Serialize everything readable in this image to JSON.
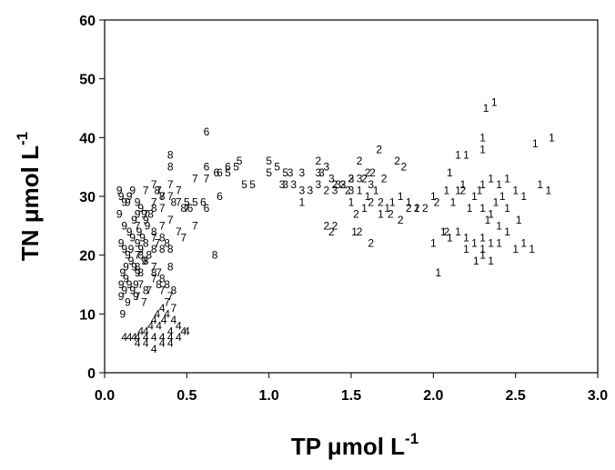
{
  "chart_data": {
    "type": "scatter",
    "title": "",
    "xlabel": "TP μmol L",
    "xlabel_sup": "-1",
    "ylabel": "TN μmol L",
    "ylabel_sup": "-1",
    "xlim": [
      0.0,
      3.0
    ],
    "ylim": [
      0,
      60
    ],
    "x_ticks": [
      "0.0",
      "0.5",
      "1.0",
      "1.5",
      "2.0",
      "2.5",
      "3.0"
    ],
    "y_ticks": [
      "0",
      "10",
      "20",
      "30",
      "40",
      "50",
      "60"
    ],
    "grid": false,
    "legend": "none",
    "marker": "series label characters",
    "series": [
      {
        "name": "1",
        "points": [
          [
            2.32,
            45
          ],
          [
            2.37,
            46
          ],
          [
            2.62,
            39
          ],
          [
            2.72,
            40
          ],
          [
            2.3,
            40
          ],
          [
            2.15,
            37
          ],
          [
            2.2,
            37
          ],
          [
            2.3,
            38
          ],
          [
            2.1,
            34
          ],
          [
            2.15,
            31
          ],
          [
            2.25,
            30
          ],
          [
            2.3,
            32
          ],
          [
            2.35,
            33
          ],
          [
            2.4,
            32
          ],
          [
            2.45,
            33
          ],
          [
            2.5,
            31
          ],
          [
            2.55,
            30
          ],
          [
            2.65,
            32
          ],
          [
            2.7,
            31
          ],
          [
            2.22,
            28
          ],
          [
            2.3,
            28
          ],
          [
            2.38,
            29
          ],
          [
            2.45,
            28
          ],
          [
            2.33,
            26
          ],
          [
            2.4,
            25
          ],
          [
            2.06,
            24
          ],
          [
            2.1,
            23
          ],
          [
            2.15,
            24
          ],
          [
            2.2,
            23
          ],
          [
            2.25,
            22
          ],
          [
            2.3,
            23
          ],
          [
            2.35,
            22
          ],
          [
            2.4,
            22
          ],
          [
            2.5,
            21
          ],
          [
            2.3,
            21
          ],
          [
            2.55,
            22
          ],
          [
            2.6,
            21
          ],
          [
            2.26,
            19
          ],
          [
            2.3,
            20
          ],
          [
            2.35,
            19
          ],
          [
            2.03,
            17
          ],
          [
            2.0,
            22
          ],
          [
            1.85,
            29
          ],
          [
            1.9,
            28
          ],
          [
            1.8,
            30
          ],
          [
            1.75,
            29
          ],
          [
            1.65,
            31
          ],
          [
            1.72,
            28
          ],
          [
            1.68,
            27
          ],
          [
            1.6,
            30
          ],
          [
            1.55,
            31
          ],
          [
            1.5,
            29
          ],
          [
            1.58,
            28
          ],
          [
            1.52,
            24
          ],
          [
            1.2,
            29
          ],
          [
            2.0,
            30
          ],
          [
            2.08,
            31
          ],
          [
            2.18,
            32
          ],
          [
            2.12,
            29
          ],
          [
            2.28,
            31
          ],
          [
            2.42,
            30
          ],
          [
            2.35,
            27
          ],
          [
            2.2,
            21
          ],
          [
            2.45,
            24
          ],
          [
            2.52,
            26
          ]
        ]
      },
      {
        "name": "2",
        "points": [
          [
            1.3,
            36
          ],
          [
            1.55,
            36
          ],
          [
            1.67,
            38
          ],
          [
            1.78,
            36
          ],
          [
            1.82,
            35
          ],
          [
            1.6,
            34
          ],
          [
            1.63,
            34
          ],
          [
            1.7,
            33
          ],
          [
            1.5,
            33
          ],
          [
            1.45,
            32
          ],
          [
            1.4,
            32
          ],
          [
            1.35,
            31
          ],
          [
            1.53,
            27
          ],
          [
            1.62,
            29
          ],
          [
            1.68,
            29
          ],
          [
            1.74,
            27
          ],
          [
            1.8,
            26
          ],
          [
            1.85,
            28
          ],
          [
            1.9,
            28
          ],
          [
            1.95,
            28
          ],
          [
            1.35,
            25
          ],
          [
            1.4,
            25
          ],
          [
            1.38,
            24
          ],
          [
            1.55,
            24
          ],
          [
            1.62,
            22
          ],
          [
            2.18,
            31
          ],
          [
            2.02,
            29
          ],
          [
            2.08,
            24
          ],
          [
            1.58,
            33
          ],
          [
            1.48,
            31
          ]
        ]
      },
      {
        "name": "3",
        "points": [
          [
            1.13,
            34
          ],
          [
            1.2,
            34
          ],
          [
            1.3,
            34
          ],
          [
            1.35,
            35
          ],
          [
            1.32,
            34
          ],
          [
            1.15,
            32
          ],
          [
            1.2,
            31
          ],
          [
            1.25,
            31
          ],
          [
            1.08,
            32
          ],
          [
            1.1,
            32
          ],
          [
            1.3,
            32
          ],
          [
            1.38,
            33
          ],
          [
            1.42,
            32
          ],
          [
            1.45,
            32
          ],
          [
            1.5,
            33
          ],
          [
            1.55,
            33
          ],
          [
            1.62,
            32
          ],
          [
            1.4,
            31
          ],
          [
            1.5,
            31
          ]
        ]
      },
      {
        "name": "4",
        "points": [
          [
            0.15,
            6
          ],
          [
            0.2,
            6
          ],
          [
            0.25,
            6
          ],
          [
            0.3,
            6
          ],
          [
            0.35,
            6
          ],
          [
            0.4,
            6
          ],
          [
            0.45,
            6
          ],
          [
            0.2,
            5
          ],
          [
            0.25,
            5
          ],
          [
            0.3,
            4
          ],
          [
            0.35,
            5
          ],
          [
            0.4,
            5
          ],
          [
            0.25,
            7
          ],
          [
            0.28,
            8
          ],
          [
            0.3,
            9
          ],
          [
            0.32,
            10
          ],
          [
            0.35,
            11
          ],
          [
            0.38,
            10
          ],
          [
            0.42,
            9
          ],
          [
            0.45,
            8
          ],
          [
            0.48,
            7
          ],
          [
            0.5,
            7
          ],
          [
            0.22,
            7
          ],
          [
            0.18,
            6
          ],
          [
            0.12,
            6
          ],
          [
            0.33,
            8
          ],
          [
            0.36,
            9
          ],
          [
            0.4,
            7
          ]
        ]
      },
      {
        "name": "5",
        "points": [
          [
            0.8,
            35
          ],
          [
            0.82,
            36
          ],
          [
            0.75,
            34
          ],
          [
            0.85,
            32
          ],
          [
            0.9,
            32
          ],
          [
            1.0,
            36
          ],
          [
            1.05,
            35
          ],
          [
            1.1,
            34
          ],
          [
            1.0,
            34
          ],
          [
            0.5,
            29
          ],
          [
            0.55,
            29
          ]
        ]
      },
      {
        "name": "6",
        "points": [
          [
            0.62,
            41
          ],
          [
            0.62,
            35
          ],
          [
            0.68,
            34
          ],
          [
            0.7,
            34
          ],
          [
            0.75,
            35
          ],
          [
            0.6,
            29
          ],
          [
            0.52,
            28
          ],
          [
            0.7,
            30
          ],
          [
            0.62,
            28
          ]
        ]
      },
      {
        "name": "7",
        "points": [
          [
            0.3,
            32
          ],
          [
            0.33,
            31
          ],
          [
            0.4,
            32
          ],
          [
            0.45,
            31
          ],
          [
            0.55,
            33
          ],
          [
            0.62,
            33
          ],
          [
            0.35,
            30
          ],
          [
            0.4,
            30
          ],
          [
            0.45,
            29
          ],
          [
            0.5,
            28
          ],
          [
            0.25,
            31
          ],
          [
            0.3,
            29
          ],
          [
            0.35,
            28
          ],
          [
            0.4,
            26
          ],
          [
            0.45,
            24
          ],
          [
            0.48,
            23
          ],
          [
            0.55,
            25
          ],
          [
            0.2,
            25
          ],
          [
            0.25,
            27
          ],
          [
            0.3,
            23
          ],
          [
            0.32,
            22
          ],
          [
            0.35,
            25
          ],
          [
            0.2,
            20
          ],
          [
            0.3,
            18
          ],
          [
            0.33,
            17
          ],
          [
            0.22,
            15
          ],
          [
            0.27,
            14
          ],
          [
            0.3,
            16
          ],
          [
            0.35,
            14
          ],
          [
            0.38,
            12
          ],
          [
            0.4,
            13
          ],
          [
            0.42,
            11
          ],
          [
            0.2,
            13
          ],
          [
            0.24,
            12
          ]
        ]
      },
      {
        "name": "8",
        "points": [
          [
            0.4,
            37
          ],
          [
            0.4,
            35
          ],
          [
            0.32,
            31
          ],
          [
            0.35,
            30
          ],
          [
            0.42,
            29
          ],
          [
            0.3,
            28
          ],
          [
            0.28,
            27
          ],
          [
            0.3,
            24
          ],
          [
            0.35,
            23
          ],
          [
            0.38,
            22
          ],
          [
            0.4,
            21
          ],
          [
            0.25,
            22
          ],
          [
            0.22,
            20
          ],
          [
            0.27,
            20
          ],
          [
            0.3,
            21
          ],
          [
            0.35,
            21
          ],
          [
            0.4,
            18
          ],
          [
            0.25,
            19
          ],
          [
            0.2,
            18
          ],
          [
            0.22,
            17
          ],
          [
            0.3,
            17
          ],
          [
            0.35,
            16
          ],
          [
            0.33,
            15
          ],
          [
            0.38,
            15
          ],
          [
            0.42,
            14
          ],
          [
            0.25,
            14
          ],
          [
            0.67,
            20
          ],
          [
            0.48,
            28
          ]
        ]
      },
      {
        "name": "9",
        "points": [
          [
            0.09,
            31
          ],
          [
            0.1,
            30
          ],
          [
            0.14,
            29
          ],
          [
            0.15,
            30
          ],
          [
            0.17,
            31
          ],
          [
            0.2,
            29
          ],
          [
            0.22,
            28
          ],
          [
            0.24,
            27
          ],
          [
            0.25,
            26
          ],
          [
            0.09,
            27
          ],
          [
            0.12,
            25
          ],
          [
            0.15,
            24
          ],
          [
            0.17,
            23
          ],
          [
            0.2,
            22
          ],
          [
            0.1,
            22
          ],
          [
            0.12,
            21
          ],
          [
            0.14,
            20
          ],
          [
            0.16,
            19
          ],
          [
            0.18,
            18
          ],
          [
            0.2,
            17
          ],
          [
            0.11,
            17
          ],
          [
            0.13,
            16
          ],
          [
            0.15,
            15
          ],
          [
            0.17,
            14
          ],
          [
            0.19,
            13
          ],
          [
            0.1,
            15
          ],
          [
            0.12,
            14
          ],
          [
            0.14,
            12
          ],
          [
            0.21,
            24
          ],
          [
            0.23,
            23
          ],
          [
            0.18,
            26
          ],
          [
            0.2,
            27
          ],
          [
            0.12,
            29
          ],
          [
            0.1,
            13
          ],
          [
            0.11,
            10
          ],
          [
            0.16,
            21
          ],
          [
            0.22,
            21
          ],
          [
            0.24,
            19
          ],
          [
            0.13,
            18
          ],
          [
            0.19,
            15
          ],
          [
            0.26,
            25
          ]
        ]
      }
    ]
  }
}
